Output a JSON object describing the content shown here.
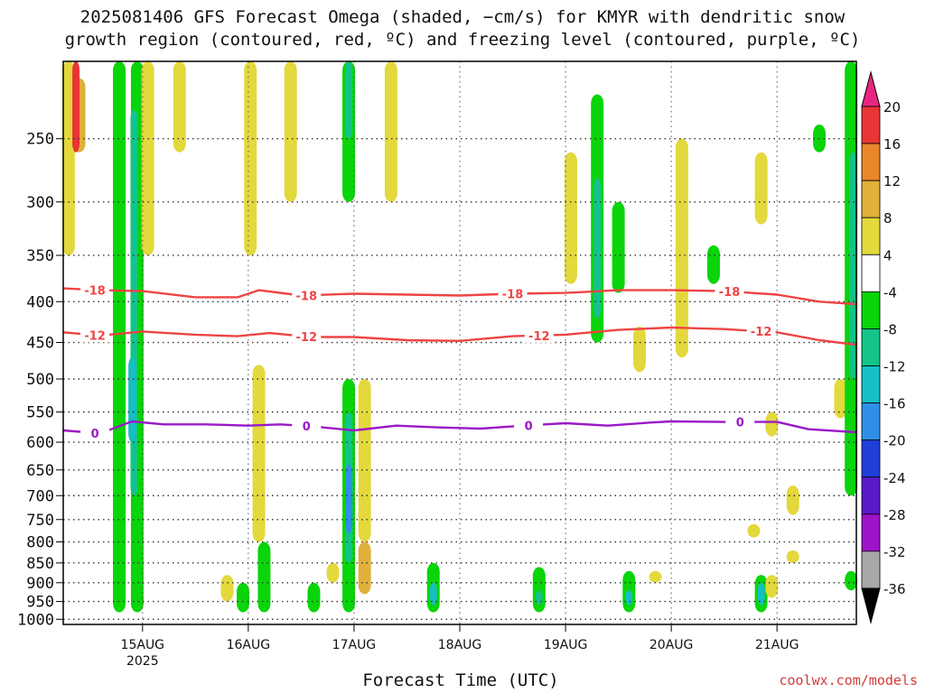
{
  "title": {
    "line1": "2025081406 GFS Forecast Omega (shaded, −cm/s) for KMYR with dendritic snow",
    "line2": "growth region (contoured, red, ºC) and freezing level (contoured, purple, ºC)"
  },
  "xlabel": "Forecast Time (UTC)",
  "credit": "coolwx.com/models",
  "chart_data": {
    "type": "heatmap",
    "y_axis": {
      "scale": "log-pressure",
      "range": [
        1000,
        200
      ],
      "ticks": [
        250,
        300,
        350,
        400,
        450,
        500,
        550,
        600,
        650,
        700,
        750,
        800,
        850,
        900,
        950,
        1000
      ]
    },
    "x_axis": {
      "range_days": [
        14.25,
        21.75
      ],
      "ticks": [
        {
          "day": 15,
          "label": "15AUG",
          "sublabel": "2025"
        },
        {
          "day": 16,
          "label": "16AUG",
          "sublabel": ""
        },
        {
          "day": 17,
          "label": "17AUG",
          "sublabel": ""
        },
        {
          "day": 18,
          "label": "18AUG",
          "sublabel": ""
        },
        {
          "day": 19,
          "label": "19AUG",
          "sublabel": ""
        },
        {
          "day": 20,
          "label": "20AUG",
          "sublabel": ""
        },
        {
          "day": 21,
          "label": "21AUG",
          "sublabel": ""
        }
      ]
    },
    "grid": true,
    "colorbar": {
      "labels": [
        "20",
        "16",
        "12",
        "8",
        "4",
        "-4",
        "-8",
        "-12",
        "-16",
        "-20",
        "-24",
        "-28",
        "-32",
        "-36"
      ],
      "colors": [
        "#e8267f",
        "#e83535",
        "#e8862b",
        "#e0b03a",
        "#e3d83c",
        "#ffffff",
        "#0ad40a",
        "#12c48a",
        "#15bfc4",
        "#2f8fe8",
        "#1f3fd8",
        "#5b18c8",
        "#9e12c9",
        "#a8a8a8",
        "#000000"
      ]
    },
    "omega_blobs": [
      {
        "t": 14.3,
        "p0": 200,
        "p1": 350,
        "v": 4
      },
      {
        "t": 14.4,
        "p0": 210,
        "p1": 260,
        "v": 8
      },
      {
        "t": 14.37,
        "p0": 200,
        "p1": 260,
        "v": 16
      },
      {
        "t": 14.78,
        "p0": 200,
        "p1": 980,
        "v": -8
      },
      {
        "t": 14.95,
        "p0": 200,
        "p1": 980,
        "v": -8
      },
      {
        "t": 14.92,
        "p0": 230,
        "p1": 700,
        "v": -12
      },
      {
        "t": 14.9,
        "p0": 470,
        "p1": 600,
        "v": -16
      },
      {
        "t": 15.05,
        "p0": 200,
        "p1": 350,
        "v": 4
      },
      {
        "t": 15.35,
        "p0": 200,
        "p1": 260,
        "v": 4
      },
      {
        "t": 15.8,
        "p0": 880,
        "p1": 950,
        "v": 4
      },
      {
        "t": 15.95,
        "p0": 900,
        "p1": 980,
        "v": -8
      },
      {
        "t": 16.02,
        "p0": 200,
        "p1": 350,
        "v": 4
      },
      {
        "t": 16.1,
        "p0": 480,
        "p1": 800,
        "v": 4
      },
      {
        "t": 16.15,
        "p0": 800,
        "p1": 980,
        "v": -8
      },
      {
        "t": 16.4,
        "p0": 200,
        "p1": 300,
        "v": 4
      },
      {
        "t": 16.62,
        "p0": 900,
        "p1": 980,
        "v": -8
      },
      {
        "t": 16.8,
        "p0": 850,
        "p1": 900,
        "v": 4
      },
      {
        "t": 16.95,
        "p0": 200,
        "p1": 300,
        "v": -8
      },
      {
        "t": 16.95,
        "p0": 200,
        "p1": 250,
        "v": -12
      },
      {
        "t": 16.95,
        "p0": 500,
        "p1": 980,
        "v": -8
      },
      {
        "t": 16.95,
        "p0": 550,
        "p1": 850,
        "v": -12
      },
      {
        "t": 16.95,
        "p0": 640,
        "p1": 780,
        "v": -20
      },
      {
        "t": 17.1,
        "p0": 800,
        "p1": 930,
        "v": 8
      },
      {
        "t": 17.1,
        "p0": 500,
        "p1": 800,
        "v": 4
      },
      {
        "t": 17.35,
        "p0": 200,
        "p1": 300,
        "v": 4
      },
      {
        "t": 17.75,
        "p0": 850,
        "p1": 980,
        "v": -8
      },
      {
        "t": 17.75,
        "p0": 900,
        "p1": 960,
        "v": -16
      },
      {
        "t": 18.75,
        "p0": 860,
        "p1": 980,
        "v": -8
      },
      {
        "t": 18.75,
        "p0": 920,
        "p1": 960,
        "v": -12
      },
      {
        "t": 19.05,
        "p0": 260,
        "p1": 380,
        "v": 4
      },
      {
        "t": 19.3,
        "p0": 220,
        "p1": 450,
        "v": -8
      },
      {
        "t": 19.3,
        "p0": 280,
        "p1": 420,
        "v": -12
      },
      {
        "t": 19.5,
        "p0": 300,
        "p1": 390,
        "v": -8
      },
      {
        "t": 19.6,
        "p0": 870,
        "p1": 980,
        "v": -8
      },
      {
        "t": 19.6,
        "p0": 920,
        "p1": 960,
        "v": -16
      },
      {
        "t": 19.7,
        "p0": 430,
        "p1": 490,
        "v": 4
      },
      {
        "t": 19.85,
        "p0": 870,
        "p1": 900,
        "v": 4
      },
      {
        "t": 20.1,
        "p0": 250,
        "p1": 470,
        "v": 4
      },
      {
        "t": 20.4,
        "p0": 340,
        "p1": 380,
        "v": -8
      },
      {
        "t": 20.78,
        "p0": 760,
        "p1": 790,
        "v": 4
      },
      {
        "t": 20.85,
        "p0": 880,
        "p1": 980,
        "v": -8
      },
      {
        "t": 20.85,
        "p0": 900,
        "p1": 960,
        "v": -16
      },
      {
        "t": 20.95,
        "p0": 880,
        "p1": 940,
        "v": 4
      },
      {
        "t": 20.95,
        "p0": 550,
        "p1": 590,
        "v": 4
      },
      {
        "t": 20.85,
        "p0": 260,
        "p1": 320,
        "v": 4
      },
      {
        "t": 21.15,
        "p0": 680,
        "p1": 740,
        "v": 4
      },
      {
        "t": 21.15,
        "p0": 820,
        "p1": 850,
        "v": 4
      },
      {
        "t": 21.4,
        "p0": 240,
        "p1": 260,
        "v": -8
      },
      {
        "t": 21.6,
        "p0": 500,
        "p1": 560,
        "v": 4
      },
      {
        "t": 21.7,
        "p0": 200,
        "p1": 700,
        "v": -8
      },
      {
        "t": 21.72,
        "p0": 260,
        "p1": 500,
        "v": -12
      },
      {
        "t": 21.7,
        "p0": 870,
        "p1": 920,
        "v": -8
      }
    ],
    "isotherms": [
      {
        "color": "#ee4444",
        "labels": [
          {
            "t": 14.55,
            "text": "-18"
          },
          {
            "t": 16.55,
            "text": "-18"
          },
          {
            "t": 18.5,
            "text": "-18"
          },
          {
            "t": 20.55,
            "text": "-18"
          }
        ],
        "points": [
          [
            14.25,
            385
          ],
          [
            14.6,
            387
          ],
          [
            15,
            388
          ],
          [
            15.5,
            395
          ],
          [
            15.9,
            395
          ],
          [
            16.1,
            387
          ],
          [
            16.5,
            393
          ],
          [
            17,
            391
          ],
          [
            17.5,
            392
          ],
          [
            18,
            393
          ],
          [
            18.5,
            391
          ],
          [
            19,
            390
          ],
          [
            19.5,
            387
          ],
          [
            20,
            387
          ],
          [
            20.5,
            388
          ],
          [
            21,
            392
          ],
          [
            21.4,
            400
          ],
          [
            21.75,
            403
          ]
        ]
      },
      {
        "color": "#ee4444",
        "labels": [
          {
            "t": 14.55,
            "text": "-12"
          },
          {
            "t": 16.55,
            "text": "-12"
          },
          {
            "t": 18.75,
            "text": "-12"
          },
          {
            "t": 20.85,
            "text": "-12"
          }
        ],
        "points": [
          [
            14.25,
            437
          ],
          [
            14.6,
            441
          ],
          [
            15,
            436
          ],
          [
            15.5,
            440
          ],
          [
            15.9,
            442
          ],
          [
            16.2,
            438
          ],
          [
            16.6,
            443
          ],
          [
            17,
            443
          ],
          [
            17.5,
            447
          ],
          [
            18,
            448
          ],
          [
            18.5,
            442
          ],
          [
            19,
            440
          ],
          [
            19.5,
            434
          ],
          [
            20,
            431
          ],
          [
            20.5,
            433
          ],
          [
            21,
            437
          ],
          [
            21.4,
            447
          ],
          [
            21.75,
            453
          ]
        ]
      },
      {
        "color": "#9b18c8",
        "labels": [
          {
            "t": 14.55,
            "text": "0"
          },
          {
            "t": 16.55,
            "text": "0"
          },
          {
            "t": 18.65,
            "text": "0"
          },
          {
            "t": 20.65,
            "text": "0"
          }
        ],
        "points": [
          [
            14.25,
            580
          ],
          [
            14.6,
            585
          ],
          [
            14.9,
            565
          ],
          [
            15.2,
            570
          ],
          [
            15.6,
            570
          ],
          [
            16,
            572
          ],
          [
            16.3,
            570
          ],
          [
            16.6,
            573
          ],
          [
            17,
            580
          ],
          [
            17.4,
            572
          ],
          [
            17.8,
            575
          ],
          [
            18.2,
            577
          ],
          [
            18.6,
            572
          ],
          [
            19,
            568
          ],
          [
            19.4,
            572
          ],
          [
            19.8,
            567
          ],
          [
            20,
            565
          ],
          [
            20.5,
            566
          ],
          [
            21,
            566
          ],
          [
            21.3,
            578
          ],
          [
            21.75,
            583
          ]
        ]
      }
    ]
  }
}
